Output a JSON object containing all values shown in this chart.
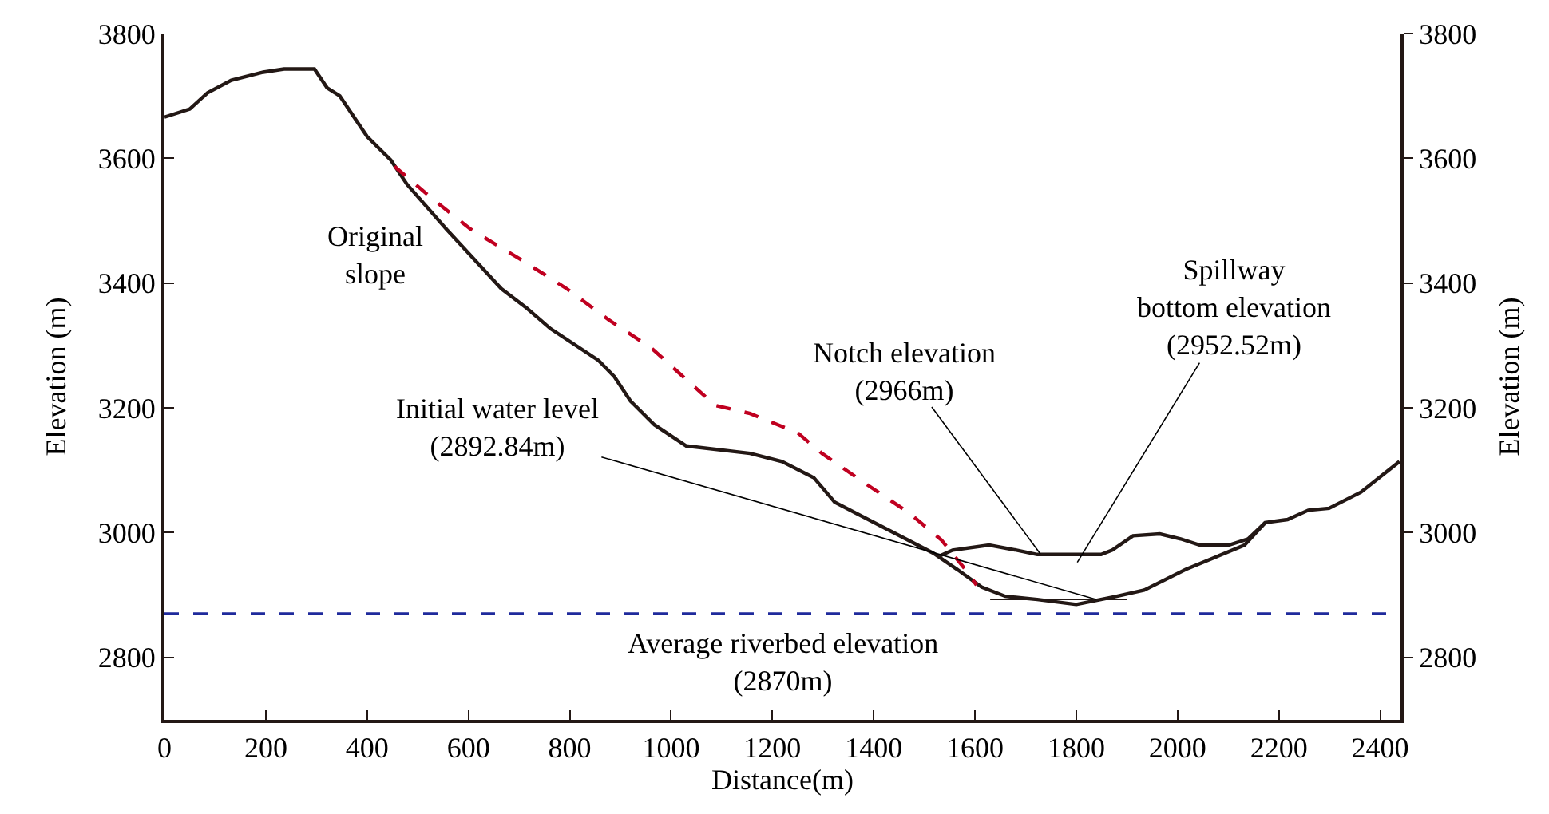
{
  "chart_data": {
    "type": "line",
    "xlabel": "Distance(m)",
    "ylabel": "Elevation (m)",
    "y2label": "Elevation (m)",
    "xlim": [
      0,
      2440
    ],
    "xticks": [
      0,
      200,
      400,
      600,
      800,
      1000,
      1200,
      1400,
      1600,
      1800,
      2000,
      2200,
      2400
    ],
    "ylim": [
      2700,
      3800
    ],
    "yticks": [
      2800,
      3000,
      3200,
      3400,
      3600,
      3800
    ],
    "y2lim": [
      2700,
      3800
    ],
    "y2ticks": [
      2800,
      3000,
      3200,
      3400,
      3600,
      3800
    ],
    "marker": "none",
    "series": [
      {
        "color": "#231815",
        "line_style": "solid",
        "x": [
          0,
          50,
          85,
          132,
          195,
          236,
          296,
          321,
          346,
          400,
          447,
          479,
          557,
          665,
          715,
          762,
          857,
          888,
          920,
          967,
          1030,
          1156,
          1219,
          1282,
          1323,
          1518,
          1565,
          1613,
          1660,
          1723,
          1800,
          1880,
          1934,
          2016,
          2132,
          2173,
          2217,
          2258,
          2299,
          2362,
          2438
        ],
        "values": [
          3666,
          3679,
          3705,
          3725,
          3738,
          3743,
          3743,
          3713,
          3700,
          3635,
          3597,
          3558,
          3486,
          3391,
          3360,
          3327,
          3276,
          3250,
          3211,
          3173,
          3139,
          3127,
          3114,
          3088,
          3049,
          2967,
          2941,
          2913,
          2898,
          2893,
          2885,
          2898,
          2908,
          2941,
          2980,
          3016,
          3021,
          3036,
          3039,
          3065,
          3114
        ]
      },
      {
        "color": "#231815",
        "line_style": "solid",
        "x": [
          1528,
          1556,
          1628,
          1682,
          1723,
          1849,
          1871,
          1912,
          1965,
          2006,
          2044,
          2101,
          2139,
          2173
        ],
        "values": [
          2962,
          2972,
          2980,
          2972,
          2965,
          2965,
          2972,
          2995,
          2998,
          2990,
          2980,
          2980,
          2990,
          3016
        ]
      },
      {
        "color": "#231815",
        "line_style": "solid",
        "x": [
          1630,
          1900
        ],
        "values": [
          2893,
          2893
        ]
      },
      {
        "color": "#c00020",
        "line_style": "dashed",
        "x": [
          454,
          532,
          605,
          709,
          794,
          879,
          961,
          1087,
          1156,
          1250,
          1298,
          1376,
          1471,
          1534,
          1581,
          1603
        ],
        "values": [
          3587,
          3533,
          3486,
          3435,
          3391,
          3340,
          3296,
          3204,
          3191,
          3160,
          3127,
          3083,
          3031,
          2988,
          2941,
          2916
        ]
      }
    ],
    "ref_lines": [
      {
        "axis": "y",
        "value": 2870,
        "label": "Average riverbed elevation\n(2870m)",
        "color": "#1f2a9c",
        "line_style": "dashed"
      }
    ],
    "annotations": [
      "Original\nslope",
      {
        "text": "Notch elevation\n(2966m)",
        "x": 1729,
        "y": 2966
      },
      {
        "text": "Spillway\nbottom elevation\n(2952.52m)",
        "x": 1802,
        "y": 2952.52
      },
      {
        "text": "Initial water level\n(2892.84m)",
        "x": 1840,
        "y": 2892.84
      }
    ]
  }
}
